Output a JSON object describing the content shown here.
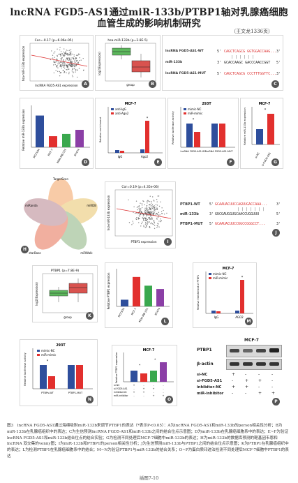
{
  "header": {
    "title_line1": "lncRNA FGD5-AS1通过miR-133b/PTBP1轴对乳腺癌细胞",
    "title_line2": "血管生成的影响机制研究",
    "byline": "（王文龙1336页）"
  },
  "panels": {
    "A": {
      "letter": "A",
      "stat": "Cor=-0.17 (p=6.06e-05)",
      "xlabel": "lncRNA FGD5-AS1 expression",
      "ylabel": "hsa-miR-133b expression"
    },
    "B": {
      "letter": "B",
      "stat": "hsa-miR-133b (p=2.8E-5)",
      "xlabel": "group",
      "ylabel": "log2(Expression)"
    },
    "C": {
      "letter": "C",
      "rows": [
        {
          "name": "lncRNA FGD5-AS1-WT",
          "p5": "5'",
          "seq": "CAGCTCAGCG GGTGGACCAAG...",
          "p3": "3'"
        },
        {
          "name": "miR-133b",
          "p5": "3'",
          "seq": "GCACCAAGC GACCCAACCGGT",
          "p3": "5'"
        },
        {
          "name": "lncRNA FGD5-AS1-MUT",
          "p5": "5'",
          "seq": "CAGCTCAGCG CCCTTTGGTTC...",
          "p3": "3'"
        }
      ]
    },
    "D": {
      "letter": "D",
      "ylabel": "Relative miR-133b expression",
      "categories": [
        "MCF10A",
        "MCF-7",
        "MDA-MB-231",
        "BT474"
      ],
      "values": [
        1.0,
        0.35,
        0.42,
        0.55
      ],
      "colors": [
        "#2e4e9c",
        "#e2302e",
        "#3aa84e",
        "#8b3fa6"
      ]
    },
    "E": {
      "letter": "E",
      "title": "MCF-7",
      "series": [
        "anti-IgG",
        "anti-Ago2"
      ],
      "categories": [
        "IgG",
        "Ago2"
      ],
      "ylabel": "Relative enrichment"
    },
    "F": {
      "letter": "F",
      "title": "293T",
      "series": [
        "mimic-NC",
        "miR-mimic"
      ],
      "categories": [
        "lncRNA FGD5-AS1-WT",
        "lncRNA FGD5-AS1-MUT"
      ],
      "ylabel": "Relative luciferase activity"
    },
    "G": {
      "letter": "G",
      "title": "MCF-7",
      "ylabel": "Relative miR-133b expression",
      "categories": [
        "si-NC",
        "si-FGD5-AS1"
      ]
    },
    "H": {
      "letter": "H",
      "sets": [
        "TargetScan",
        "miRDB",
        "miRWalk",
        "starBase",
        "miRanda"
      ]
    },
    "I": {
      "letter": "I",
      "stat": "Cor=0.19 (p=4.35e-06)",
      "xlabel": "PTBP1 expression",
      "ylabel": "hsa-miR-133b expression"
    },
    "J": {
      "letter": "J",
      "rows": [
        {
          "name": "PTBP1-WT",
          "p5": "5'",
          "seq": "GCAAUACUUCCAGUUGACCAAA...",
          "p3": "3'"
        },
        {
          "name": "miR-133b",
          "p5": "3'",
          "seq": "GUCGAUGGUGCAACCUGGUUU",
          "p3": "5'"
        },
        {
          "name": "PTBP1-MUT",
          "p5": "5'",
          "seq": "GCAAUACUUCCUGCCGGGCCT...",
          "p3": "3'"
        }
      ]
    },
    "K": {
      "letter": "K",
      "stat": "PTBP1 (p=7.8E-9)",
      "xlabel": "group",
      "ylabel": "log2(Expression)"
    },
    "L": {
      "letter": "L",
      "ylabel": "Relative PTBP1 expression",
      "categories": [
        "MCF10A",
        "MCF-7",
        "MDA-MB-231",
        "BT474"
      ],
      "values": [
        1.0,
        4.4,
        3.1,
        2.6
      ],
      "colors": [
        "#2e4e9c",
        "#e2302e",
        "#3aa84e",
        "#8b3fa6"
      ]
    },
    "M": {
      "letter": "M",
      "title": "MCF-7",
      "series": [
        "mimic-NC",
        "miR-mimic"
      ],
      "categories": [
        "IgG",
        "AGO2"
      ],
      "ylabel": "Relative Enrichment of PTBP1"
    },
    "N": {
      "letter": "N",
      "title": "293T",
      "series": [
        "mimic-NC",
        "miR-mimic"
      ],
      "categories": [
        "PTBPs-WT",
        "PTBP1-MUT"
      ],
      "ylabel": "Relative luciferase activity"
    },
    "O": {
      "letter": "O",
      "title": "MCF-7",
      "ylabel": "Relative PTBP1 expression",
      "conditions": [
        {
          "name": "si-NC",
          "marks": [
            "+",
            "-",
            "-",
            "-"
          ]
        },
        {
          "name": "si-FGD5-AS1",
          "marks": [
            "-",
            "+",
            "+",
            "-"
          ]
        },
        {
          "name": "inhibitor-NC",
          "marks": [
            "+",
            "+",
            "-",
            "-"
          ]
        },
        {
          "name": "miR-inhibitor",
          "marks": [
            "-",
            "-",
            "+",
            "+"
          ]
        }
      ]
    },
    "P": {
      "letter": "P",
      "title": "MCF-7",
      "bands": [
        "PTBP1",
        "β-actin"
      ],
      "conditions": [
        {
          "name": "si-NC",
          "marks": [
            "+",
            "-",
            "-",
            "-"
          ]
        },
        {
          "name": "si-FGD5-AS1",
          "marks": [
            "-",
            "+",
            "+",
            "-"
          ]
        },
        {
          "name": "inhibitor-NC",
          "marks": [
            "+",
            "+",
            "-",
            "-"
          ]
        },
        {
          "name": "miR-inhibitor",
          "marks": [
            "-",
            "-",
            "+",
            "+"
          ]
        }
      ]
    }
  },
  "caption": "图3　lncRNA FGD5-AS1通过海绵吸附miR-133b来调节PTBP1的表达（*表示P<0.05）：A为lncRNA FGD5-AS1和miR-133b的person相关性分析；B为miR-133b在乳腺癌组织中的表达；C为生信预测lncRNA FGD5-AS1和miR-133b之间的结合位点示意图；D为miR-133b在乳腺癌细胞系中的表达；E~F为验证lncRNA FGD5-AS1和miR-133b结合位点的结合实验；G为检测不同处理后MCF-7细胞中miR-133b的表达；H为miR-133b的数据库预测的靶基因韦恩和lncRNA 双交集的venny图；I为miR-133b和PTBP1的person相关性分析；J为生信预测miR-133b与PTBP1之间的结合位点示意图；K为PTBP1在乳腺癌组织中的表达；L为检测PTBP1在乳腺癌细胞系中的结合；M~N为验证PTBP1与miR-133b的结合关系；O~P为蛋白质印迹法检测不同处理后MCF-7细胞中PTBP1的表达",
  "footer": "插图7-10"
}
